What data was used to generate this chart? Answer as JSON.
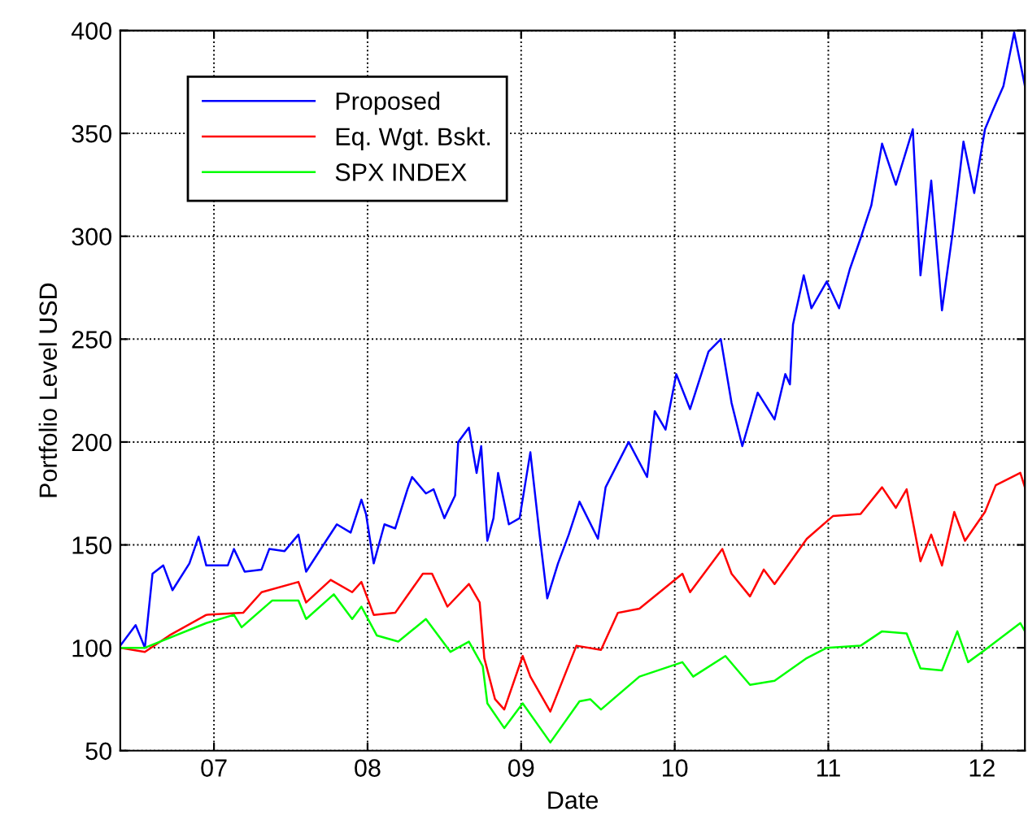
{
  "chart_data": {
    "type": "line",
    "xlabel": "Date",
    "ylabel": "Portfolio Level USD",
    "xlim": [
      2006.39,
      2012.28
    ],
    "ylim": [
      50,
      400
    ],
    "xticks": [
      {
        "value": 2007,
        "label": "07"
      },
      {
        "value": 2008,
        "label": "08"
      },
      {
        "value": 2009,
        "label": "09"
      },
      {
        "value": 2010,
        "label": "10"
      },
      {
        "value": 2011,
        "label": "11"
      },
      {
        "value": 2012,
        "label": "12"
      }
    ],
    "yticks": [
      50,
      100,
      150,
      200,
      250,
      300,
      350,
      400
    ],
    "grid": true,
    "legend": "top left",
    "marker": "none",
    "line_style": "solid",
    "series": [
      {
        "name": "Proposed",
        "color": "#0000ff",
        "x": [
          2006.39,
          2006.49,
          2006.55,
          2006.6,
          2006.67,
          2006.73,
          2006.84,
          2006.9,
          2006.95,
          2007.09,
          2007.13,
          2007.2,
          2007.31,
          2007.36,
          2007.46,
          2007.55,
          2007.6,
          2007.73,
          2007.8,
          2007.89,
          2007.96,
          2007.99,
          2008.04,
          2008.11,
          2008.18,
          2008.26,
          2008.29,
          2008.38,
          2008.43,
          2008.5,
          2008.57,
          2008.59,
          2008.66,
          2008.71,
          2008.74,
          2008.78,
          2008.82,
          2008.85,
          2008.92,
          2008.99,
          2009.06,
          2009.12,
          2009.17,
          2009.24,
          2009.31,
          2009.38,
          2009.5,
          2009.55,
          2009.7,
          2009.82,
          2009.87,
          2009.94,
          2010.01,
          2010.1,
          2010.22,
          2010.3,
          2010.37,
          2010.44,
          2010.54,
          2010.65,
          2010.72,
          2010.75,
          2010.77,
          2010.84,
          2010.89,
          2010.99,
          2011.07,
          2011.14,
          2011.21,
          2011.28,
          2011.35,
          2011.44,
          2011.55,
          2011.6,
          2011.67,
          2011.74,
          2011.81,
          2011.88,
          2011.95,
          2012.02,
          2012.07,
          2012.14,
          2012.21,
          2012.28
        ],
        "values": [
          101,
          111,
          100,
          136,
          140,
          128,
          141,
          154,
          140,
          140,
          148,
          137,
          138,
          148,
          147,
          155,
          137,
          152,
          160,
          156,
          172,
          165,
          141,
          160,
          158,
          177,
          183,
          175,
          177,
          163,
          174,
          200,
          207,
          185,
          198,
          152,
          163,
          185,
          160,
          163,
          195,
          155,
          124,
          141,
          155,
          171,
          153,
          178,
          200,
          183,
          215,
          206,
          233,
          216,
          244,
          250,
          219,
          198,
          224,
          211,
          233,
          228,
          257,
          281,
          265,
          278,
          265,
          284,
          299,
          315,
          345,
          325,
          352,
          281,
          327,
          264,
          302,
          346,
          321,
          352,
          361,
          373,
          399,
          373
        ]
      },
      {
        "name": "Eq. Wgt. Bskt.",
        "color": "#ff0000",
        "x": [
          2006.39,
          2006.55,
          2006.71,
          2006.95,
          2007.19,
          2007.31,
          2007.55,
          2007.6,
          2007.76,
          2007.9,
          2007.96,
          2008.04,
          2008.18,
          2008.36,
          2008.42,
          2008.52,
          2008.66,
          2008.73,
          2008.76,
          2008.83,
          2008.89,
          2009.01,
          2009.06,
          2009.19,
          2009.28,
          2009.36,
          2009.52,
          2009.63,
          2009.77,
          2010.05,
          2010.1,
          2010.31,
          2010.37,
          2010.49,
          2010.58,
          2010.65,
          2010.86,
          2011.03,
          2011.21,
          2011.35,
          2011.44,
          2011.51,
          2011.6,
          2011.67,
          2011.74,
          2011.82,
          2011.89,
          2012.02,
          2012.09,
          2012.25,
          2012.28
        ],
        "values": [
          100,
          98,
          106,
          116,
          117,
          127,
          132,
          122,
          133,
          127,
          132,
          116,
          117,
          136,
          136,
          120,
          131,
          122,
          95,
          75,
          70,
          96,
          86,
          69,
          86,
          101,
          99,
          117,
          119,
          136,
          127,
          148,
          136,
          125,
          138,
          131,
          153,
          164,
          165,
          178,
          168,
          177,
          142,
          155,
          140,
          166,
          152,
          166,
          179,
          185,
          178
        ]
      },
      {
        "name": "SPX INDEX",
        "color": "#00ff00",
        "x": [
          2006.39,
          2006.55,
          2006.95,
          2007.13,
          2007.18,
          2007.38,
          2007.55,
          2007.6,
          2007.78,
          2007.9,
          2007.96,
          2008.06,
          2008.2,
          2008.38,
          2008.54,
          2008.66,
          2008.75,
          2008.78,
          2008.89,
          2009.01,
          2009.19,
          2009.38,
          2009.45,
          2009.52,
          2009.77,
          2010.05,
          2010.12,
          2010.33,
          2010.49,
          2010.65,
          2010.86,
          2010.99,
          2011.21,
          2011.35,
          2011.51,
          2011.6,
          2011.74,
          2011.84,
          2011.91,
          2012.02,
          2012.25,
          2012.28
        ],
        "values": [
          100,
          100,
          112,
          116,
          110,
          123,
          123,
          114,
          126,
          114,
          120,
          106,
          103,
          114,
          98,
          103,
          91,
          73,
          61,
          73,
          54,
          74,
          75,
          70,
          86,
          93,
          86,
          96,
          82,
          84,
          95,
          100,
          101,
          108,
          107,
          90,
          89,
          108,
          93,
          99,
          112,
          108
        ]
      }
    ]
  }
}
